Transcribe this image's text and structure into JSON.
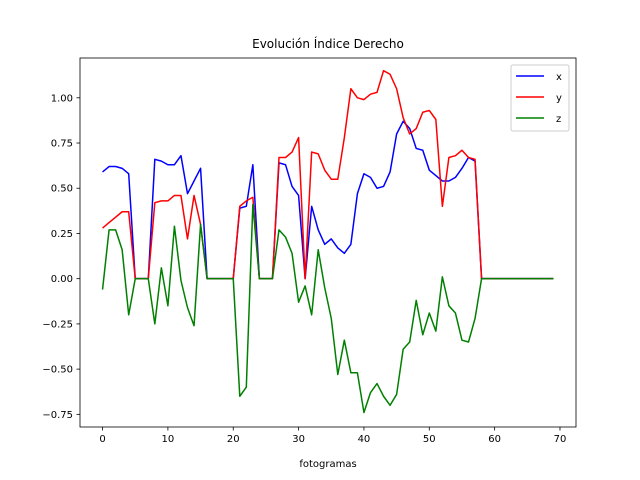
{
  "chart_data": {
    "type": "line",
    "title": "Evolución Índice Derecho",
    "xlabel": "fotogramas",
    "ylabel": "",
    "xlim": [
      -3.45,
      72.45
    ],
    "ylim": [
      -0.82,
      1.22
    ],
    "xticks": [
      0,
      10,
      20,
      30,
      40,
      50,
      60,
      70
    ],
    "yticks": [
      -0.75,
      -0.5,
      -0.25,
      0.0,
      0.25,
      0.5,
      0.75,
      1.0
    ],
    "ytick_labels": [
      "−0.75",
      "−0.50",
      "−0.25",
      "0.00",
      "0.25",
      "0.50",
      "0.75",
      "1.00"
    ],
    "grid": false,
    "legend_position": "top-right",
    "x": [
      0,
      1,
      2,
      3,
      4,
      5,
      6,
      7,
      8,
      9,
      10,
      11,
      12,
      13,
      14,
      15,
      16,
      17,
      18,
      19,
      20,
      21,
      22,
      23,
      24,
      25,
      26,
      27,
      28,
      29,
      30,
      31,
      32,
      33,
      34,
      35,
      36,
      37,
      38,
      39,
      40,
      41,
      42,
      43,
      44,
      45,
      46,
      47,
      48,
      49,
      50,
      51,
      52,
      53,
      54,
      55,
      56,
      57,
      58,
      59,
      60,
      61,
      62,
      63,
      64,
      65,
      66,
      67,
      68,
      69
    ],
    "series": [
      {
        "name": "x",
        "color": "#0000ff",
        "values": [
          0.59,
          0.62,
          0.62,
          0.61,
          0.58,
          0,
          0,
          0,
          0.66,
          0.65,
          0.63,
          0.63,
          0.68,
          0.47,
          0.54,
          0.61,
          0,
          0,
          0,
          0,
          0,
          0.39,
          0.4,
          0.63,
          0,
          0,
          0,
          0.64,
          0.63,
          0.51,
          0.46,
          0,
          0.4,
          0.27,
          0.19,
          0.22,
          0.17,
          0.14,
          0.19,
          0.47,
          0.58,
          0.56,
          0.5,
          0.51,
          0.59,
          0.8,
          0.87,
          0.83,
          0.72,
          0.71,
          0.6,
          0.57,
          0.54,
          0.54,
          0.56,
          0.61,
          0.67,
          0.65,
          0,
          0,
          0,
          0,
          0,
          0,
          0,
          0,
          0,
          0,
          0,
          0
        ]
      },
      {
        "name": "y",
        "color": "#ff0000",
        "values": [
          0.28,
          0.31,
          0.34,
          0.37,
          0.37,
          0,
          0,
          0,
          0.42,
          0.43,
          0.43,
          0.46,
          0.46,
          0.22,
          0.46,
          0.3,
          0,
          0,
          0,
          0,
          0,
          0.4,
          0.43,
          0.45,
          0,
          0,
          0,
          0.67,
          0.67,
          0.7,
          0.78,
          0,
          0.7,
          0.69,
          0.6,
          0.55,
          0.55,
          0.78,
          1.05,
          1.0,
          0.99,
          1.02,
          1.03,
          1.15,
          1.13,
          1.05,
          0.89,
          0.8,
          0.83,
          0.92,
          0.93,
          0.88,
          0.4,
          0.67,
          0.68,
          0.71,
          0.67,
          0.66,
          0,
          0,
          0,
          0,
          0,
          0,
          0,
          0,
          0,
          0,
          0,
          0
        ]
      },
      {
        "name": "z",
        "color": "#008000",
        "values": [
          -0.06,
          0.27,
          0.27,
          0.16,
          -0.2,
          0,
          0,
          0,
          -0.25,
          0.06,
          -0.15,
          0.29,
          -0.01,
          -0.16,
          -0.26,
          0.3,
          0,
          0,
          0,
          0,
          0,
          -0.65,
          -0.6,
          0.41,
          0,
          0,
          0,
          0.27,
          0.23,
          0.14,
          -0.13,
          -0.04,
          -0.2,
          0.16,
          -0.05,
          -0.22,
          -0.53,
          -0.34,
          -0.52,
          -0.52,
          -0.74,
          -0.63,
          -0.58,
          -0.65,
          -0.7,
          -0.64,
          -0.39,
          -0.35,
          -0.12,
          -0.31,
          -0.19,
          -0.29,
          0.01,
          -0.15,
          -0.19,
          -0.34,
          -0.35,
          -0.22,
          0,
          0,
          0,
          0,
          0,
          0,
          0,
          0,
          0,
          0,
          0,
          0
        ]
      }
    ]
  }
}
